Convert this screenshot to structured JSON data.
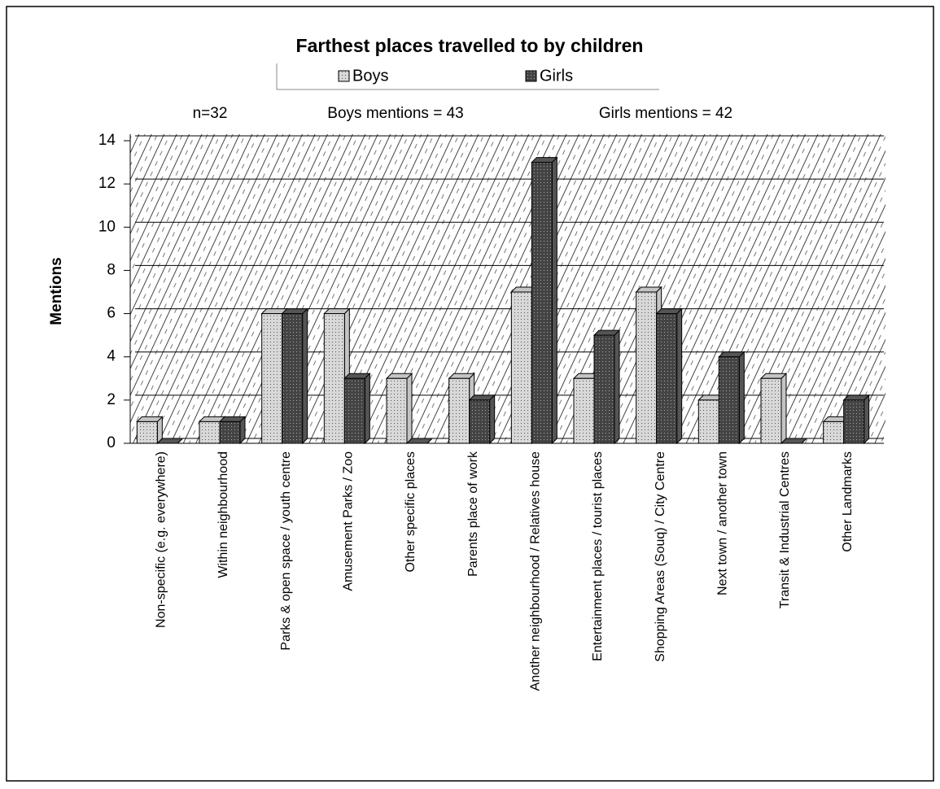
{
  "chart_data": {
    "type": "bar",
    "title": "Farthest places travelled to by children",
    "annotations": [
      "n=32",
      "Boys mentions = 43",
      "Girls mentions = 42"
    ],
    "y_label": "Mentions",
    "categories": [
      "Non-specific (e.g. everywhere)",
      "Within neighbourhood",
      "Parks & open space / youth centre",
      "Amusement Parks / Zoo",
      "Other specific places",
      "Parents place of work",
      "Another neighbourhood / Relatives house",
      "Entertainment places / tourist places",
      "Shopping Areas (Souq) / City Centre",
      "Next town / another town",
      "Transit & Industrial Centres",
      "Other Landmarks"
    ],
    "series": [
      {
        "name": "Boys",
        "color": "#c4c4c4",
        "values": [
          1,
          1,
          6,
          6,
          3,
          3,
          7,
          3,
          7,
          2,
          3,
          1
        ]
      },
      {
        "name": "Girls",
        "color": "#555555",
        "values": [
          0,
          1,
          6,
          3,
          0,
          2,
          13,
          5,
          6,
          4,
          0,
          2
        ]
      }
    ],
    "ylim": [
      0,
      14
    ],
    "yticks": [
      0,
      2,
      4,
      6,
      8,
      10,
      12,
      14
    ],
    "grid": true,
    "legend": "top"
  }
}
